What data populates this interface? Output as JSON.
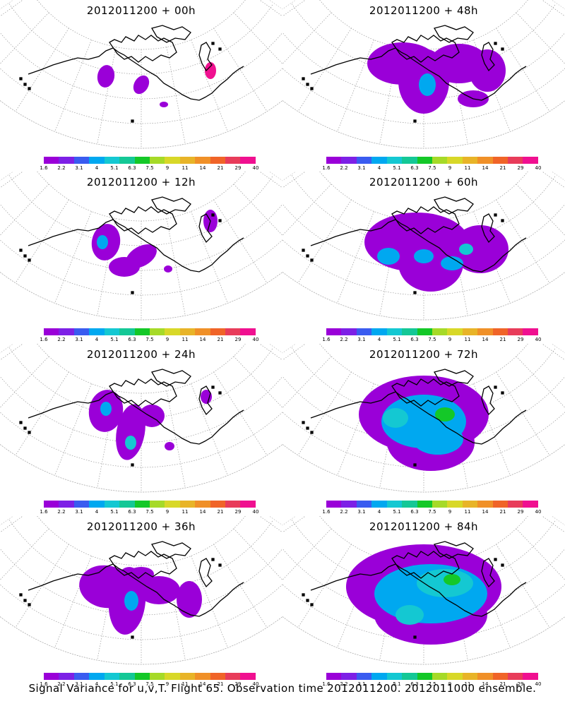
{
  "panels": [
    {
      "title": "2012011200 + 00h",
      "level": 0
    },
    {
      "title": "2012011200 + 48h",
      "level": 4
    },
    {
      "title": "2012011200 + 12h",
      "level": 1
    },
    {
      "title": "2012011200 + 60h",
      "level": 5
    },
    {
      "title": "2012011200 + 24h",
      "level": 2
    },
    {
      "title": "2012011200 + 72h",
      "level": 6
    },
    {
      "title": "2012011200 + 36h",
      "level": 3
    },
    {
      "title": "2012011200 + 84h",
      "level": 7
    }
  ],
  "colorbar": {
    "colors": [
      "#9a00d8",
      "#7d20e6",
      "#3a5cf0",
      "#00a8f0",
      "#14c8d2",
      "#14c896",
      "#14c828",
      "#a6da28",
      "#d8d828",
      "#e8b428",
      "#f09028",
      "#f06428",
      "#e83c5a",
      "#f01090"
    ],
    "labels": [
      "1.6",
      "2.2",
      "3.1",
      "4",
      "5.1",
      "6.3",
      "7.5",
      "9",
      "11",
      "14",
      "21",
      "29",
      "40"
    ]
  },
  "footer": "Signal Variance for u,v,T. Flight 65. Observation time 2012011200. 2012011000 ensemble."
}
